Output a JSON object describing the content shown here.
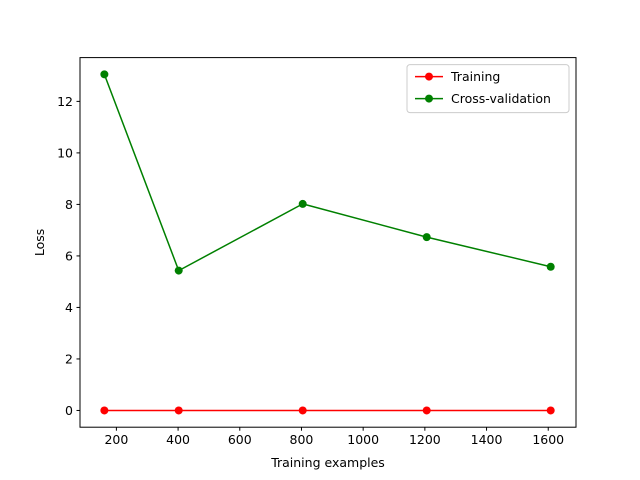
{
  "chart_data": {
    "type": "line",
    "title": "",
    "xlabel": "Training examples",
    "ylabel": "Loss",
    "xlim": [
      82,
      1690
    ],
    "ylim": [
      -0.65,
      13.7
    ],
    "xticks": [
      200,
      400,
      600,
      800,
      1000,
      1200,
      1400,
      1600
    ],
    "yticks": [
      0,
      2,
      4,
      6,
      8,
      10,
      12
    ],
    "grid": false,
    "legend_position": "top-right",
    "x": [
      161,
      402,
      804,
      1206,
      1608
    ],
    "series": [
      {
        "name": "Training",
        "color": "#ff0000",
        "marker": "circle",
        "values": [
          0.0,
          0.0,
          0.0,
          0.0,
          0.0
        ]
      },
      {
        "name": "Cross-validation",
        "color": "#008000",
        "marker": "circle",
        "values": [
          13.05,
          5.43,
          8.02,
          6.73,
          5.58
        ]
      }
    ]
  }
}
